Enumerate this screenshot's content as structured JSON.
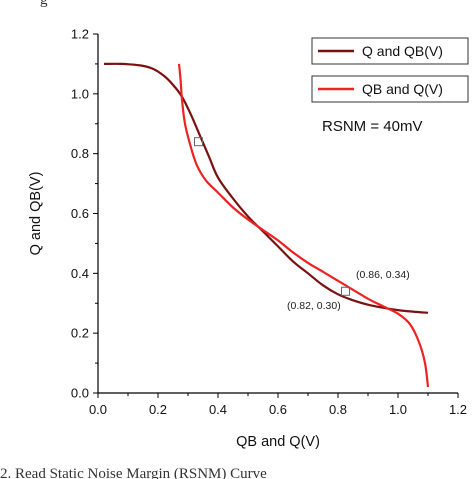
{
  "page": {
    "top_fragment": "g",
    "caption_fragment": "2. Read Static Noise Margin (RSNM) Curve"
  },
  "chart_data": {
    "type": "line",
    "xlabel": "QB and Q(V)",
    "ylabel": "Q and QB(V)",
    "xlim": [
      0.0,
      1.2
    ],
    "ylim": [
      0.0,
      1.2
    ],
    "x_ticks": [
      "0.0",
      "0.2",
      "0.4",
      "0.6",
      "0.8",
      "1.0",
      "1.2"
    ],
    "y_ticks": [
      "0.0",
      "0.2",
      "0.4",
      "0.6",
      "0.8",
      "1.0",
      "1.2"
    ],
    "grid": false,
    "legend_placement": "top-right",
    "series": [
      {
        "name": "Q and QB(V)",
        "color": "#7a1010",
        "points": [
          [
            0.02,
            1.1
          ],
          [
            0.08,
            1.1
          ],
          [
            0.14,
            1.095
          ],
          [
            0.18,
            1.085
          ],
          [
            0.22,
            1.06
          ],
          [
            0.25,
            1.03
          ],
          [
            0.28,
            0.99
          ],
          [
            0.31,
            0.93
          ],
          [
            0.34,
            0.86
          ],
          [
            0.37,
            0.79
          ],
          [
            0.4,
            0.72
          ],
          [
            0.45,
            0.65
          ],
          [
            0.5,
            0.59
          ],
          [
            0.55,
            0.54
          ],
          [
            0.6,
            0.49
          ],
          [
            0.65,
            0.44
          ],
          [
            0.7,
            0.4
          ],
          [
            0.75,
            0.36
          ],
          [
            0.8,
            0.33
          ],
          [
            0.85,
            0.31
          ],
          [
            0.9,
            0.295
          ],
          [
            0.95,
            0.285
          ],
          [
            1.0,
            0.277
          ],
          [
            1.05,
            0.272
          ],
          [
            1.1,
            0.268
          ]
        ]
      },
      {
        "name": "QB and Q(V)",
        "color": "#ee2222",
        "points": [
          [
            0.27,
            1.1
          ],
          [
            0.275,
            1.05
          ],
          [
            0.28,
            0.98
          ],
          [
            0.29,
            0.9
          ],
          [
            0.31,
            0.82
          ],
          [
            0.33,
            0.76
          ],
          [
            0.36,
            0.71
          ],
          [
            0.4,
            0.67
          ],
          [
            0.45,
            0.62
          ],
          [
            0.5,
            0.58
          ],
          [
            0.55,
            0.545
          ],
          [
            0.6,
            0.51
          ],
          [
            0.65,
            0.47
          ],
          [
            0.7,
            0.435
          ],
          [
            0.75,
            0.405
          ],
          [
            0.8,
            0.375
          ],
          [
            0.85,
            0.345
          ],
          [
            0.9,
            0.315
          ],
          [
            0.95,
            0.29
          ],
          [
            1.0,
            0.265
          ],
          [
            1.04,
            0.23
          ],
          [
            1.07,
            0.17
          ],
          [
            1.09,
            0.1
          ],
          [
            1.1,
            0.02
          ]
        ]
      }
    ],
    "markers": [
      {
        "x": 0.335,
        "y": 0.84
      },
      {
        "x": 0.825,
        "y": 0.34
      }
    ],
    "annotations": [
      {
        "text": "(0.86, 0.34)",
        "x": 0.86,
        "y": 0.385
      },
      {
        "text": "(0.82, 0.30)",
        "x": 0.63,
        "y": 0.28
      }
    ],
    "note": "RSNM = 40mV"
  }
}
